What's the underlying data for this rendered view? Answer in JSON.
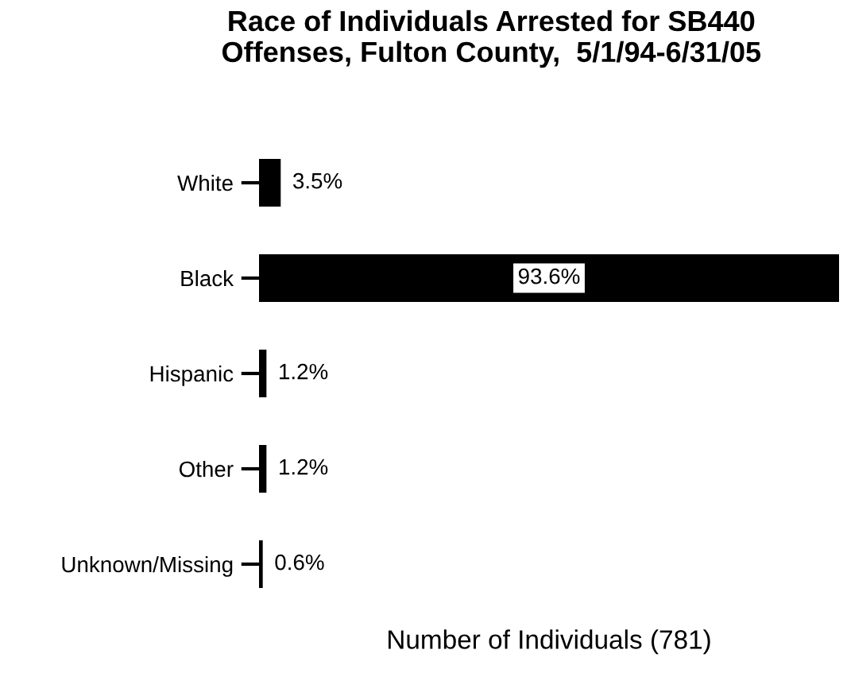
{
  "chart_data": {
    "type": "bar",
    "orientation": "horizontal",
    "title": "Race of Individuals Arrested for SB440\nOffenses, Fulton County,  5/1/94-6/31/05",
    "xlabel": "Number of Individuals (781)",
    "categories": [
      "White",
      "Black",
      "Hispanic",
      "Other",
      "Unknown/Missing"
    ],
    "values": [
      3.5,
      93.6,
      1.2,
      1.2,
      0.6
    ],
    "value_labels": [
      "3.5%",
      "93.6%",
      "1.2%",
      "1.2%",
      "0.6%"
    ],
    "color": "#000000",
    "grid": false,
    "legend": false
  }
}
